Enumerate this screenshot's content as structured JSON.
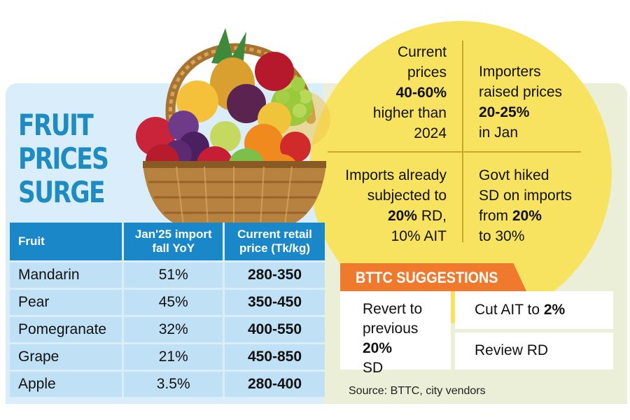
{
  "title": {
    "line1": "FRUIT",
    "line2": "PRICES",
    "line3": "SURGE"
  },
  "colors": {
    "accent_blue": "#1a87c9",
    "title_blue": "#1e8bc3",
    "panel_blue": "#d9eefa",
    "row_blue": "#bfe0f5",
    "circle_yellow": "#f7e360",
    "suggestion_orange": "#ef7a2d",
    "panel_right": "#ecefd8"
  },
  "icons": {
    "illustration": "fruit-basket"
  },
  "chart_data": {
    "type": "table",
    "columns": [
      "Fruit",
      "Jan'25 import fall YoY",
      "Current retail price (Tk/kg)"
    ],
    "header_lines": [
      [
        "Fruit"
      ],
      [
        "Jan'25 import",
        "fall YoY"
      ],
      [
        "Current retail",
        "price (Tk/kg)"
      ]
    ],
    "rows": [
      [
        "Mandarin",
        "51%",
        "280-350"
      ],
      [
        "Pear",
        "45%",
        "350-450"
      ],
      [
        "Pomegranate",
        "32%",
        "400-550"
      ],
      [
        "Grape",
        "21%",
        "450-850"
      ],
      [
        "Apple",
        "3.5%",
        "280-400"
      ]
    ]
  },
  "facts": {
    "top_left": [
      {
        "text": "Current",
        "bold": false
      },
      {
        "text": "prices",
        "bold": false
      },
      {
        "text": "40-60%",
        "bold": true
      },
      {
        "text": "higher than",
        "bold": false
      },
      {
        "text": "2024",
        "bold": false
      }
    ],
    "top_right": [
      {
        "text": "Importers",
        "bold": false
      },
      {
        "text": "raised prices",
        "bold": false
      },
      {
        "text": "20-25%",
        "bold": true
      },
      {
        "text": "in Jan",
        "bold": false
      }
    ],
    "bottom_left": [
      [
        {
          "text": "Imports already",
          "bold": false
        }
      ],
      [
        {
          "text": "subjected to",
          "bold": false
        }
      ],
      [
        {
          "text": "20% ",
          "bold": true
        },
        {
          "text": "RD,",
          "bold": false
        }
      ],
      [
        {
          "text": "10% AIT",
          "bold": false
        }
      ]
    ],
    "bottom_right": [
      [
        {
          "text": "Govt hiked",
          "bold": false
        }
      ],
      [
        {
          "text": "SD on imports",
          "bold": false
        }
      ],
      [
        {
          "text": "from ",
          "bold": false
        },
        {
          "text": "20%",
          "bold": true
        }
      ],
      [
        {
          "text": "to 30%",
          "bold": false
        }
      ]
    ]
  },
  "suggestions": {
    "header": "BTTC SUGGESTIONS",
    "item1": {
      "line1": "Revert to",
      "line2": "previous",
      "bold": "20%",
      "rest": " SD"
    },
    "item2": {
      "prefix": "Cut AIT to ",
      "bold": "2%"
    },
    "item3": "Review RD"
  },
  "source": "Source: BTTC, city vendors"
}
